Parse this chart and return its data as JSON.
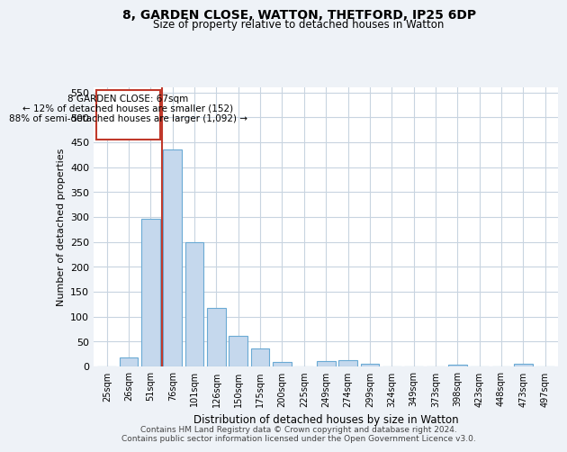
{
  "title": "8, GARDEN CLOSE, WATTON, THETFORD, IP25 6DP",
  "subtitle": "Size of property relative to detached houses in Watton",
  "xlabel": "Distribution of detached houses by size in Watton",
  "ylabel": "Number of detached properties",
  "categories": [
    "25sqm",
    "26sqm",
    "51sqm",
    "76sqm",
    "101sqm",
    "126sqm",
    "150sqm",
    "175sqm",
    "200sqm",
    "225sqm",
    "249sqm",
    "274sqm",
    "299sqm",
    "324sqm",
    "349sqm",
    "373sqm",
    "398sqm",
    "423sqm",
    "448sqm",
    "473sqm",
    "497sqm"
  ],
  "values": [
    0,
    18,
    297,
    435,
    250,
    118,
    62,
    37,
    9,
    0,
    11,
    12,
    5,
    0,
    0,
    0,
    3,
    0,
    0,
    5,
    0
  ],
  "bar_color": "#c5d8ed",
  "bar_edge_color": "#6aaad4",
  "property_line_color": "#c0392b",
  "annotation_title": "8 GARDEN CLOSE: 67sqm",
  "annotation_line1": "← 12% of detached houses are smaller (152)",
  "annotation_line2": "88% of semi-detached houses are larger (1,092) →",
  "annotation_box_color": "#c0392b",
  "ylim": [
    0,
    560
  ],
  "yticks": [
    0,
    50,
    100,
    150,
    200,
    250,
    300,
    350,
    400,
    450,
    500,
    550
  ],
  "footer_line1": "Contains HM Land Registry data © Crown copyright and database right 2024.",
  "footer_line2": "Contains public sector information licensed under the Open Government Licence v3.0.",
  "background_color": "#eef2f7",
  "plot_bg_color": "#ffffff",
  "grid_color": "#c8d4e0"
}
